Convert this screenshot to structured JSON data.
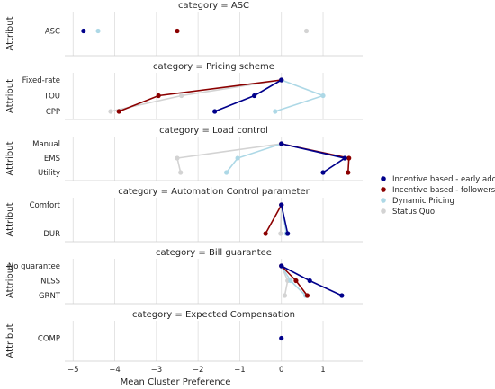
{
  "chart_data": {
    "type": "line",
    "xlabel": "Mean Cluster Preference",
    "ylabel": "Attribut",
    "xlim": [
      -5.2,
      1.95
    ],
    "xticks": [
      -5,
      -4,
      -3,
      -2,
      -1,
      0,
      1
    ],
    "xtick_labels": [
      "−5",
      "−4",
      "−3",
      "−2",
      "−1",
      "0",
      "1"
    ],
    "grid": "vertical",
    "legend": {
      "position": "right",
      "entries": [
        {
          "label": "Incentive based - early adop.",
          "color": "#00008b"
        },
        {
          "label": "Incentive based - followers",
          "color": "#8b0000"
        },
        {
          "label": "Dynamic Pricing",
          "color": "#add8e6"
        },
        {
          "label": "Status Quo",
          "color": "#d3d3d3"
        }
      ]
    },
    "facets": [
      {
        "title": "category = ASC",
        "categories": [
          "ASC"
        ],
        "series": [
          {
            "values": [
              -4.75
            ]
          },
          {
            "values": [
              -2.5
            ]
          },
          {
            "values": [
              -4.4
            ]
          },
          {
            "values": [
              0.6
            ]
          }
        ]
      },
      {
        "title": "category = Pricing scheme",
        "categories": [
          "Fixed-rate",
          "TOU",
          "CPP"
        ],
        "series": [
          {
            "values": [
              0,
              -0.65,
              -1.6
            ]
          },
          {
            "values": [
              0,
              -2.95,
              -3.9
            ]
          },
          {
            "values": [
              0,
              1.0,
              -0.15
            ]
          },
          {
            "values": [
              0,
              -2.4,
              -4.1
            ]
          }
        ]
      },
      {
        "title": "category = Load control",
        "categories": [
          "Manual",
          "EMS",
          "Utility"
        ],
        "series": [
          {
            "values": [
              0,
              1.52,
              1.0
            ]
          },
          {
            "values": [
              0,
              1.62,
              1.6
            ]
          },
          {
            "values": [
              0,
              -1.05,
              -1.32
            ]
          },
          {
            "values": [
              0,
              -2.5,
              -2.42
            ]
          }
        ]
      },
      {
        "title": "category = Automation Control parameter",
        "categories": [
          "Comfort",
          "DUR"
        ],
        "series": [
          {
            "values": [
              0,
              0.15
            ]
          },
          {
            "values": [
              0,
              -0.38
            ]
          },
          {
            "values": [
              0,
              0.12
            ]
          },
          {
            "values": [
              0,
              -0.02
            ]
          }
        ]
      },
      {
        "title": "category = Bill guarantee",
        "categories": [
          "No guarantee",
          "NLSS",
          "GRNT"
        ],
        "series": [
          {
            "values": [
              0,
              0.68,
              1.45
            ]
          },
          {
            "values": [
              0,
              0.35,
              0.62
            ]
          },
          {
            "values": [
              0,
              0.22,
              0.58
            ]
          },
          {
            "values": [
              0,
              0.15,
              0.08
            ]
          }
        ]
      },
      {
        "title": "category = Expected Compensation",
        "categories": [
          "COMP"
        ],
        "series": [
          {
            "values": [
              0
            ]
          }
        ]
      }
    ]
  }
}
